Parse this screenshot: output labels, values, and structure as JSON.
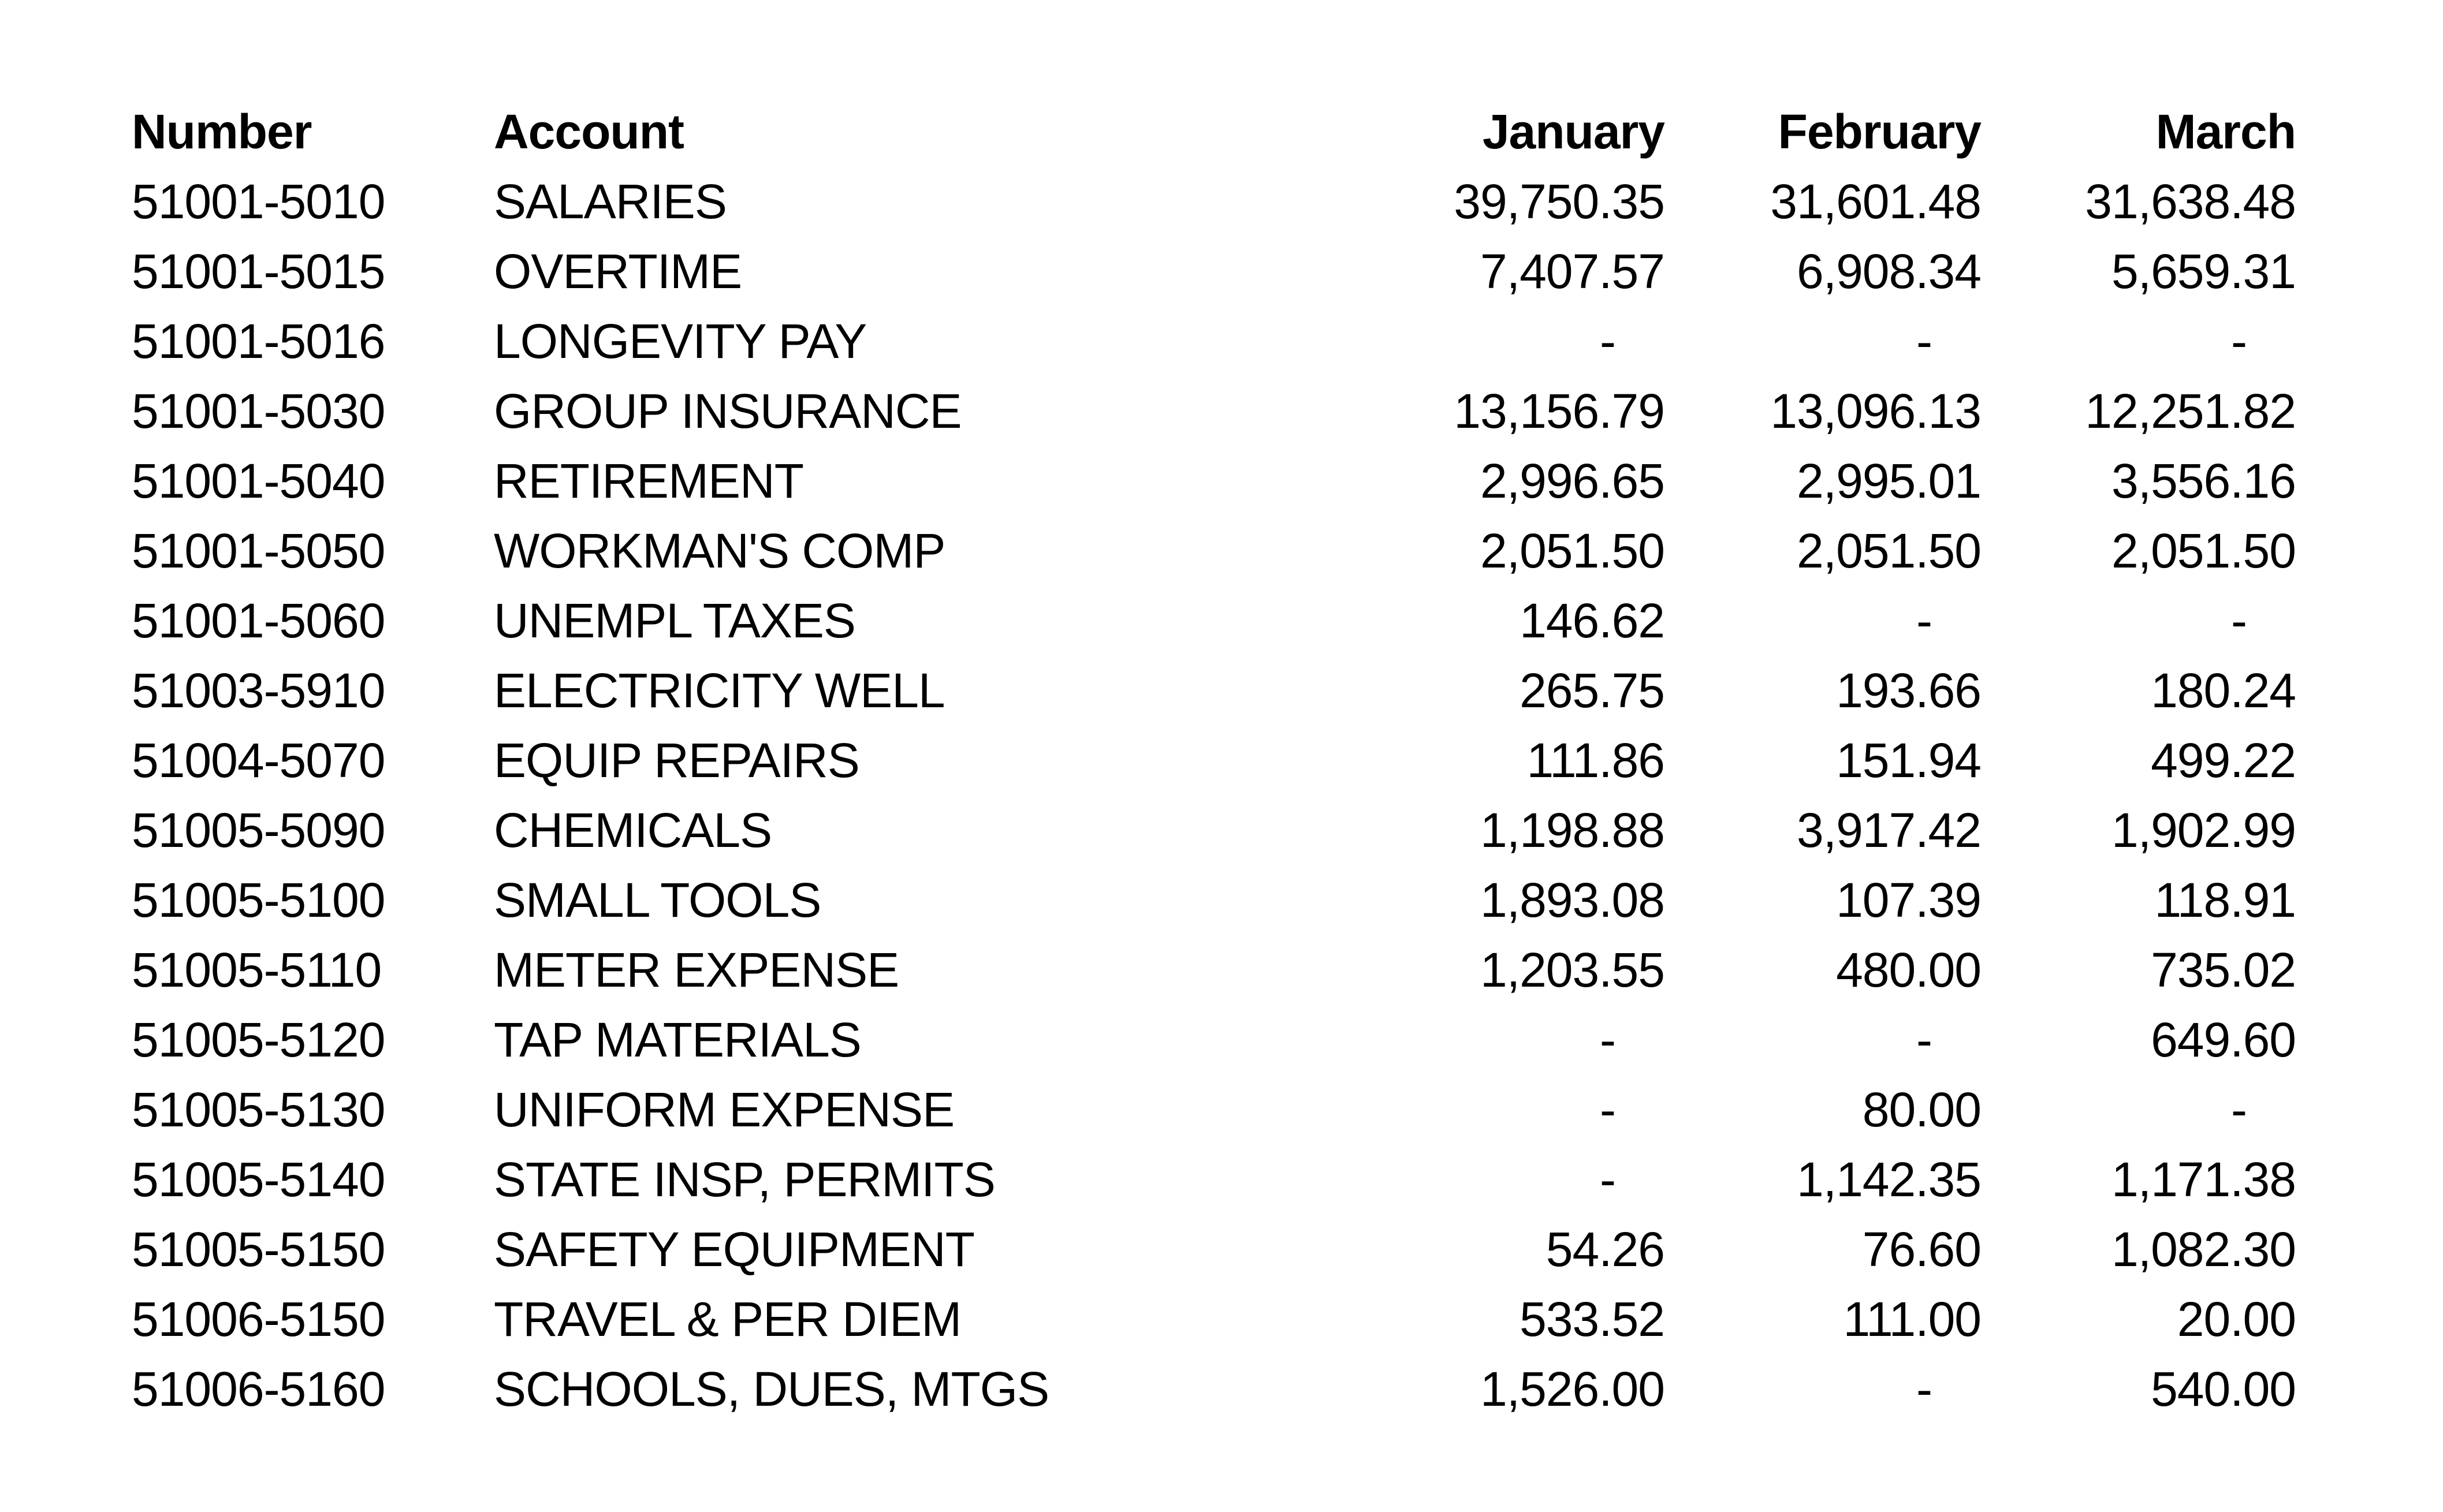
{
  "page": {
    "background_color": "#ffffff",
    "text_color": "#000000",
    "description": "Monthly expense spreadsheet region, no gridlines"
  },
  "table": {
    "headers": [
      "Number",
      "Account",
      "January",
      "February",
      "March"
    ],
    "rows": [
      [
        "51001-5010",
        "SALARIES",
        "39,750.35",
        "31,601.48",
        "31,638.48"
      ],
      [
        "51001-5015",
        "OVERTIME",
        "7,407.57",
        "6,908.34",
        "5,659.31"
      ],
      [
        "51001-5016",
        "LONGEVITY PAY",
        "-",
        "-",
        "-"
      ],
      [
        "51001-5030",
        "GROUP INSURANCE",
        "13,156.79",
        "13,096.13",
        "12,251.82"
      ],
      [
        "51001-5040",
        "RETIREMENT",
        "2,996.65",
        "2,995.01",
        "3,556.16"
      ],
      [
        "51001-5050",
        "WORKMAN'S COMP",
        "2,051.50",
        "2,051.50",
        "2,051.50"
      ],
      [
        "51001-5060",
        "UNEMPL TAXES",
        "146.62",
        "-",
        "-"
      ],
      [
        "51003-5910",
        "ELECTRICITY WELL",
        "265.75",
        "193.66",
        "180.24"
      ],
      [
        "51004-5070",
        "EQUIP REPAIRS",
        "111.86",
        "151.94",
        "499.22"
      ],
      [
        "51005-5090",
        "CHEMICALS",
        "1,198.88",
        "3,917.42",
        "1,902.99"
      ],
      [
        "51005-5100",
        "SMALL TOOLS",
        "1,893.08",
        "107.39",
        "118.91"
      ],
      [
        "51005-5110",
        "METER EXPENSE",
        "1,203.55",
        "480.00",
        "735.02"
      ],
      [
        "51005-5120",
        "TAP MATERIALS",
        "-",
        "-",
        "649.60"
      ],
      [
        "51005-5130",
        "UNIFORM EXPENSE",
        "-",
        "80.00",
        "-"
      ],
      [
        "51005-5140",
        "STATE INSP, PERMITS",
        "-",
        "1,142.35",
        "1,171.38"
      ],
      [
        "51005-5150",
        "SAFETY EQUIPMENT",
        "54.26",
        "76.60",
        "1,082.30"
      ],
      [
        "51006-5150",
        "TRAVEL & PER DIEM",
        "533.52",
        "111.00",
        "20.00"
      ],
      [
        "51006-5160",
        "SCHOOLS, DUES, MTGS",
        "1,526.00",
        "-",
        "540.00"
      ]
    ]
  }
}
